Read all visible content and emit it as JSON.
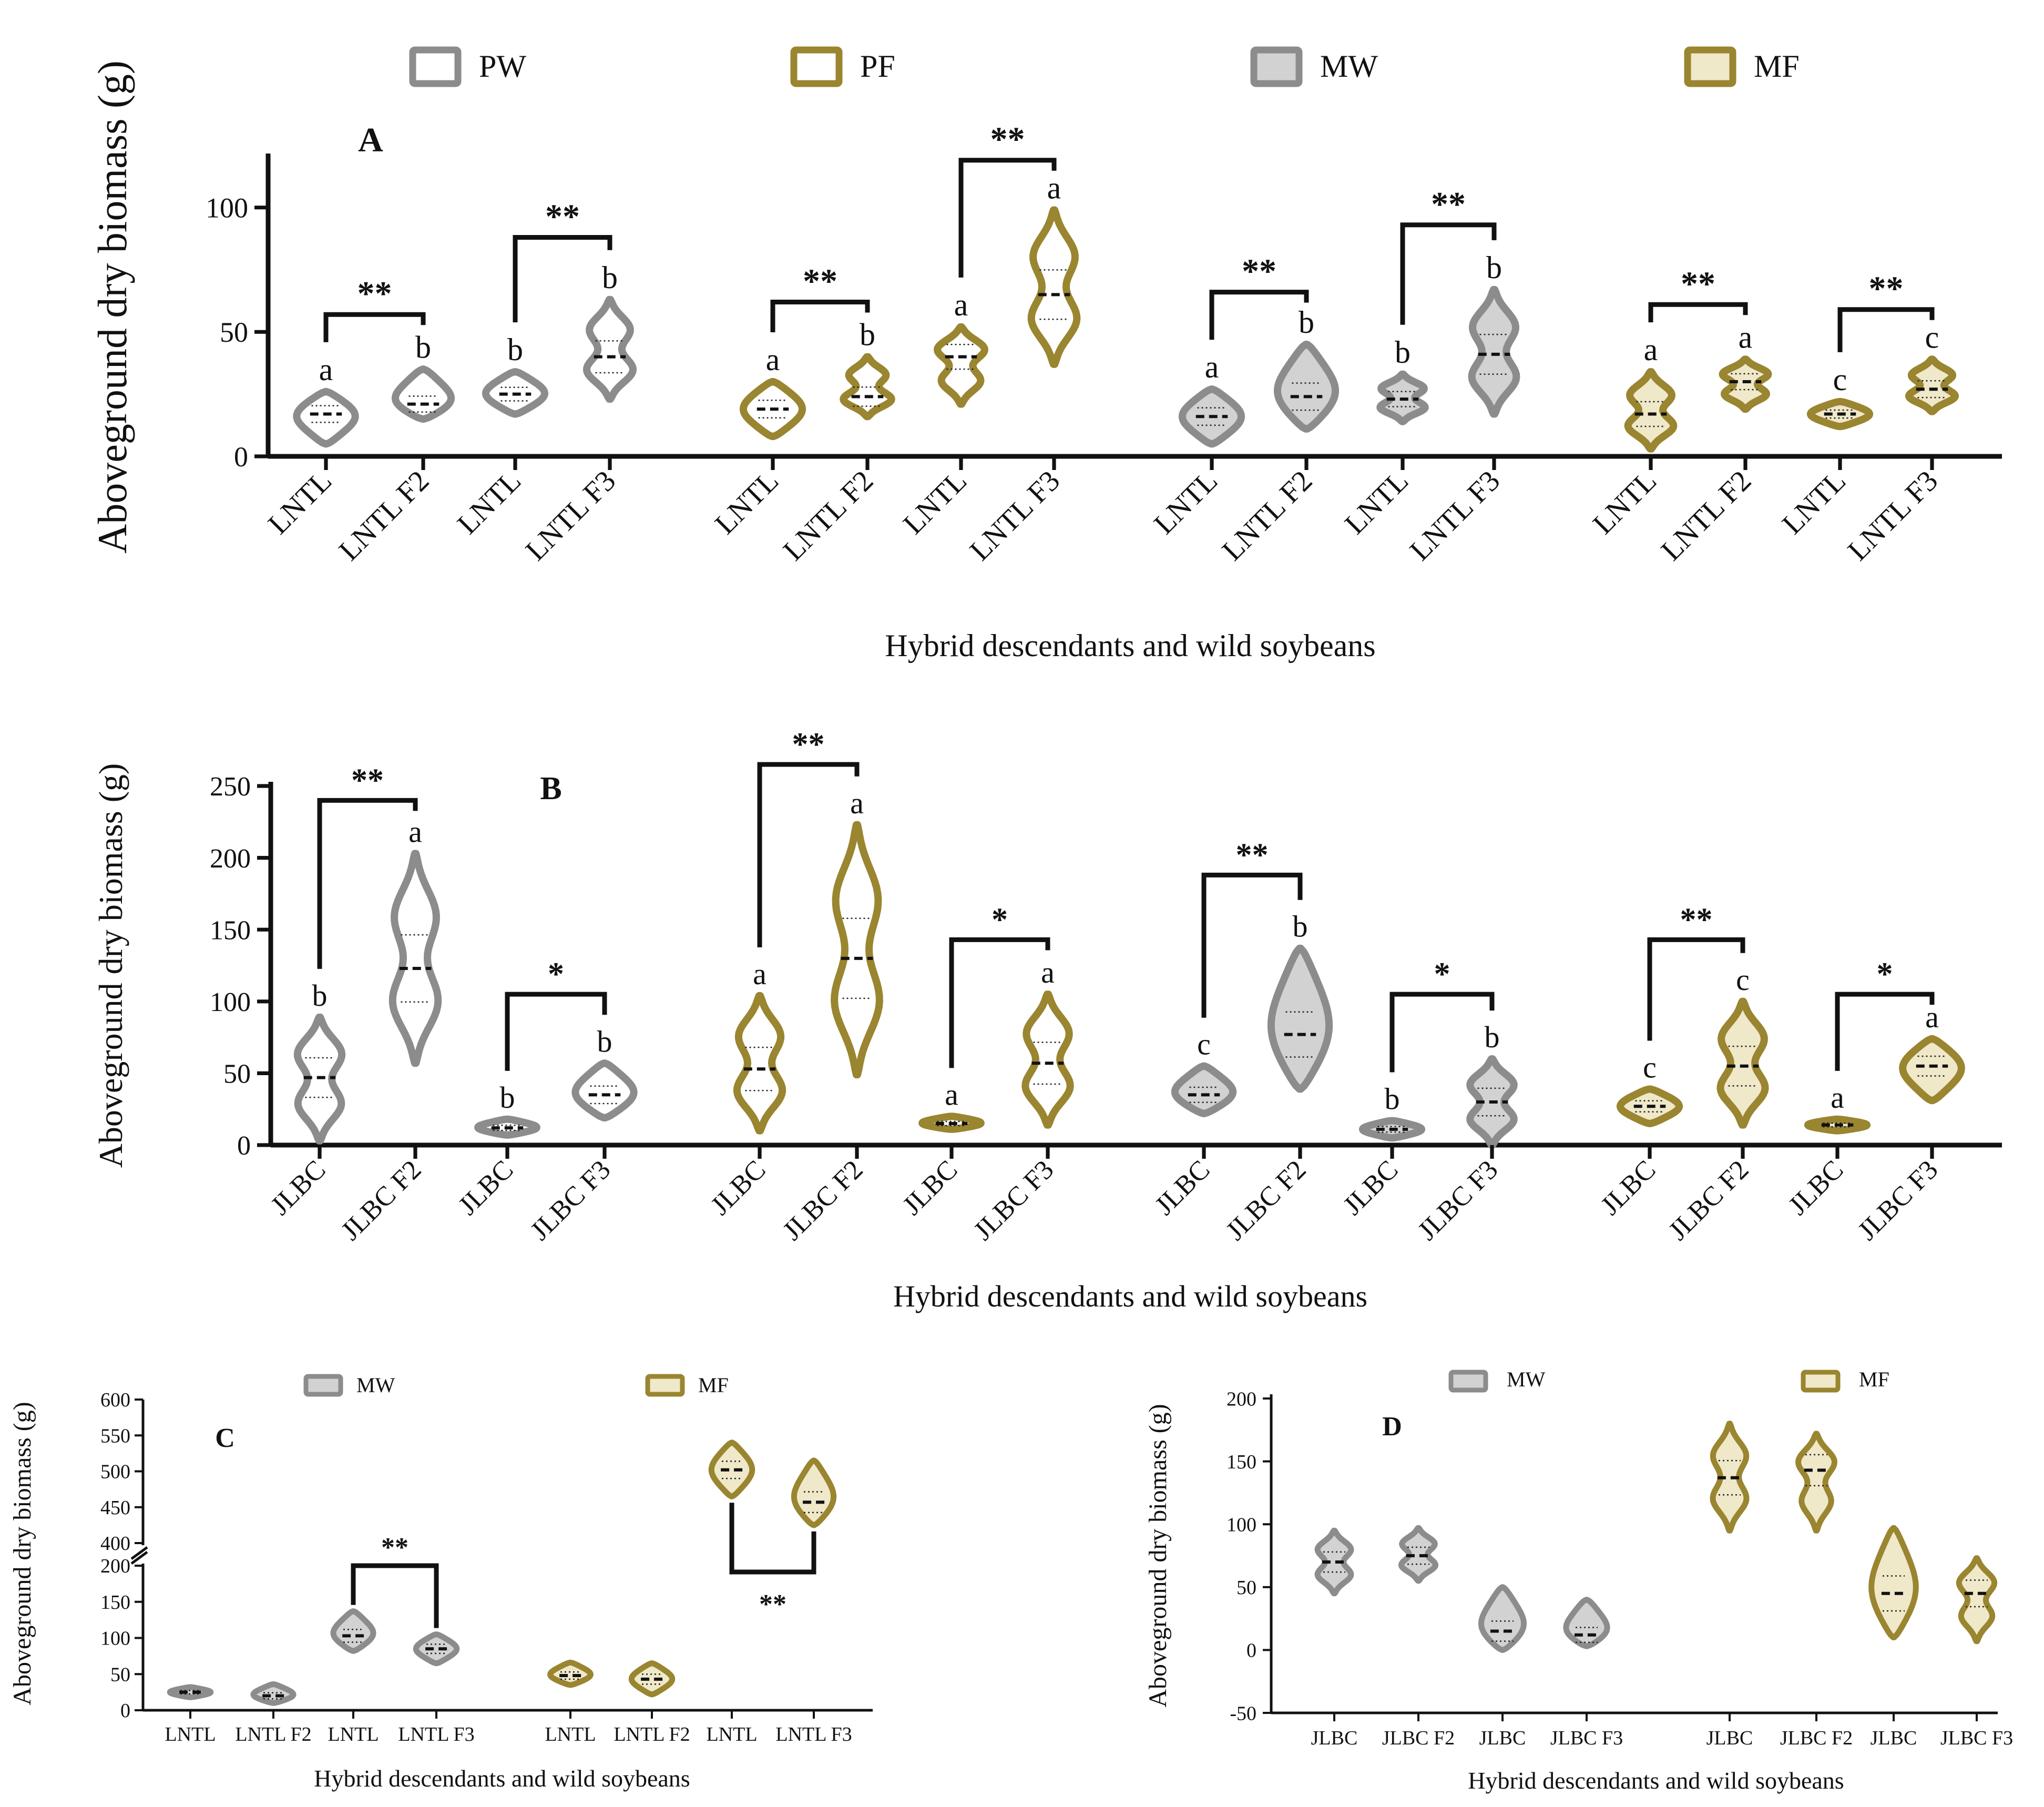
{
  "colors": {
    "gray": "#8c8c8c",
    "gray_fill": "#d2d2d2",
    "olive": "#9a8530",
    "olive_fill": "#efe8c9",
    "axis": "#111111"
  },
  "chart_data": [
    {
      "id": "A",
      "type": "violin",
      "panel_label": "A",
      "ylabel": "Aboveground dry biomass (g)",
      "xlabel": "Hybrid descendants and wild soybeans",
      "ylim": [
        0,
        120
      ],
      "yticks": [
        0,
        50,
        100
      ],
      "legend": [
        {
          "name": "PW",
          "style": "gw"
        },
        {
          "name": "PF",
          "style": "ow"
        },
        {
          "name": "MW",
          "style": "gf"
        },
        {
          "name": "MF",
          "style": "of"
        }
      ],
      "categories": [
        "LNTL",
        "LNTL F2",
        "LNTL",
        "LNTL F3",
        "LNTL",
        "LNTL F2",
        "LNTL",
        "LNTL F3",
        "LNTL",
        "LNTL F2",
        "LNTL",
        "LNTL F3",
        "LNTL",
        "LNTL F2",
        "LNTL",
        "LNTL F3"
      ],
      "median": [
        17,
        21,
        25,
        40,
        19,
        24,
        40,
        65,
        16,
        24,
        23,
        41,
        17,
        30,
        17,
        27
      ],
      "min": [
        5,
        15,
        17,
        23,
        8,
        16,
        21,
        37,
        5,
        11,
        14,
        17,
        3,
        19,
        12,
        18
      ],
      "max": [
        26,
        35,
        34,
        63,
        30,
        40,
        52,
        99,
        27,
        45,
        33,
        67,
        34,
        39,
        22,
        39
      ],
      "letters": [
        "a",
        "b",
        "b",
        "b",
        "a",
        "b",
        "a",
        "a",
        "a",
        "b",
        "b",
        "b",
        "a",
        "a",
        "c",
        "c"
      ],
      "significance": [
        {
          "left": 0,
          "right": 1,
          "label": "**",
          "y": 57
        },
        {
          "left": 2,
          "right": 3,
          "label": "**",
          "y": 88
        },
        {
          "left": 4,
          "right": 5,
          "label": "**",
          "y": 62
        },
        {
          "left": 6,
          "right": 7,
          "label": "**",
          "y": 119
        },
        {
          "left": 8,
          "right": 9,
          "label": "**",
          "y": 66
        },
        {
          "left": 10,
          "right": 11,
          "label": "**",
          "y": 93
        },
        {
          "left": 12,
          "right": 13,
          "label": "**",
          "y": 61
        },
        {
          "left": 14,
          "right": 15,
          "label": "**",
          "y": 59
        }
      ]
    },
    {
      "id": "B",
      "type": "violin",
      "panel_label": "B",
      "ylabel": "Aboveground dry biomass (g)",
      "xlabel": "Hybrid descendants and wild soybeans",
      "ylim": [
        0,
        250
      ],
      "yticks": [
        0,
        50,
        100,
        150,
        200,
        250
      ],
      "categories": [
        "JLBC",
        "JLBC F2",
        "JLBC",
        "JLBC F3",
        "JLBC",
        "JLBC F2",
        "JLBC",
        "JLBC F3",
        "JLBC",
        "JLBC F2",
        "JLBC",
        "JLBC F3",
        "JLBC",
        "JLBC F2",
        "JLBC",
        "JLBC F3"
      ],
      "median": [
        47,
        123,
        12,
        35,
        53,
        130,
        15,
        57,
        35,
        77,
        11,
        30,
        27,
        55,
        14,
        55
      ],
      "min": [
        3,
        57,
        7,
        19,
        10,
        49,
        11,
        14,
        22,
        39,
        5,
        0,
        15,
        14,
        10,
        31
      ],
      "max": [
        89,
        203,
        18,
        57,
        104,
        223,
        20,
        105,
        55,
        137,
        17,
        60,
        39,
        100,
        18,
        74
      ],
      "letters": [
        "b",
        "a",
        "b",
        "b",
        "a",
        "a",
        "a",
        "a",
        "c",
        "b",
        "b",
        "b",
        "c",
        "c",
        "a",
        "a"
      ],
      "significance": [
        {
          "left": 0,
          "right": 1,
          "label": "**",
          "y": 240
        },
        {
          "left": 2,
          "right": 3,
          "label": "*",
          "y": 105
        },
        {
          "left": 4,
          "right": 5,
          "label": "**",
          "y": 265
        },
        {
          "left": 6,
          "right": 7,
          "label": "*",
          "y": 143
        },
        {
          "left": 8,
          "right": 9,
          "label": "**",
          "y": 188
        },
        {
          "left": 10,
          "right": 11,
          "label": "*",
          "y": 105
        },
        {
          "left": 12,
          "right": 13,
          "label": "**",
          "y": 143
        },
        {
          "left": 14,
          "right": 15,
          "label": "*",
          "y": 105
        }
      ]
    },
    {
      "id": "C",
      "type": "violin",
      "panel_label": "C",
      "ylabel": "Aboveground dry biomass (g)",
      "xlabel": "Hybrid descendants and wild soybeans",
      "y_break": {
        "lower": [
          0,
          200
        ],
        "upper": [
          400,
          600
        ]
      },
      "yticks_lower": [
        0,
        50,
        100,
        150,
        200
      ],
      "yticks_upper": [
        400,
        450,
        500,
        550,
        600
      ],
      "legend": [
        {
          "name": "MW",
          "style": "gf"
        },
        {
          "name": "MF",
          "style": "of"
        }
      ],
      "categories": [
        "LNTL",
        "LNTL F2",
        "LNTL",
        "LNTL F3",
        "LNTL",
        "LNTL F2",
        "LNTL",
        "LNTL F3"
      ],
      "median": [
        25,
        20,
        103,
        85,
        48,
        43,
        502,
        457
      ],
      "min": [
        18,
        10,
        82,
        65,
        35,
        22,
        465,
        425
      ],
      "max": [
        32,
        36,
        137,
        105,
        66,
        65,
        540,
        515
      ],
      "significance": [
        {
          "left": 2,
          "right": 3,
          "label": "**",
          "y": 200,
          "dir": "up"
        },
        {
          "left": 6,
          "right": 7,
          "label": "**",
          "y": 440,
          "dir": "down"
        }
      ]
    },
    {
      "id": "D",
      "type": "violin",
      "panel_label": "D",
      "ylabel": "Aboveground dry biomass (g)",
      "xlabel": "Hybrid descendants and wild soybeans",
      "ylim": [
        -50,
        200
      ],
      "yticks": [
        -50,
        0,
        50,
        100,
        150,
        200
      ],
      "legend": [
        {
          "name": "MW",
          "style": "gf"
        },
        {
          "name": "MF",
          "style": "of"
        }
      ],
      "categories": [
        "JLBC",
        "JLBC F2",
        "JLBC",
        "JLBC F3",
        "JLBC",
        "JLBC F2",
        "JLBC",
        "JLBC F3"
      ],
      "median": [
        70,
        75,
        15,
        12,
        137,
        143,
        45,
        45
      ],
      "min": [
        45,
        55,
        0,
        3,
        95,
        95,
        10,
        7
      ],
      "max": [
        95,
        97,
        50,
        40,
        180,
        172,
        97,
        73
      ]
    }
  ]
}
